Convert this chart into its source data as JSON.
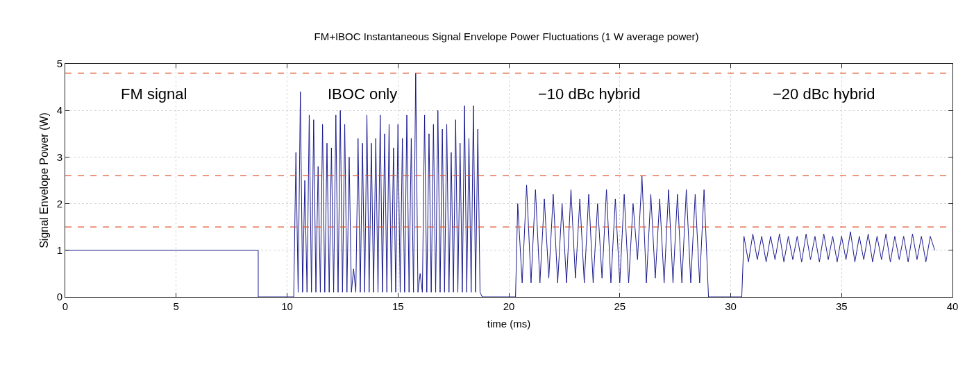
{
  "chart_data": {
    "type": "line",
    "title": "FM+IBOC Instantaneous Signal Envelope Power Fluctuations (1 W average power)",
    "xlabel": "time (ms)",
    "ylabel": "Signal Envelope Power (W)",
    "xlim": [
      0,
      40
    ],
    "xticks": [
      0,
      5,
      10,
      15,
      20,
      25,
      30,
      35,
      40
    ],
    "ylim": [
      0,
      5
    ],
    "yticks": [
      0,
      1,
      2,
      3,
      4,
      5
    ],
    "grid": true,
    "marker": "none",
    "line_style": "solid",
    "series": [
      {
        "color": "#1a1a8f",
        "x": [
          0,
          8.7,
          8.7,
          10.3,
          10.4,
          10.5,
          10.6,
          10.7,
          10.8,
          10.9,
          11.0,
          11.1,
          11.2,
          11.3,
          11.4,
          11.5,
          11.6,
          11.7,
          11.8,
          11.9,
          12.0,
          12.1,
          12.2,
          12.3,
          12.4,
          12.5,
          12.6,
          12.7,
          12.8,
          12.9,
          13.0,
          13.1,
          13.2,
          13.3,
          13.4,
          13.5,
          13.6,
          13.7,
          13.8,
          13.9,
          14.0,
          14.1,
          14.2,
          14.3,
          14.4,
          14.5,
          14.6,
          14.7,
          14.8,
          14.9,
          15.0,
          15.1,
          15.2,
          15.3,
          15.4,
          15.5,
          15.6,
          15.7,
          15.8,
          15.9,
          16.0,
          16.1,
          16.2,
          16.3,
          16.4,
          16.5,
          16.6,
          16.7,
          16.8,
          16.9,
          17.0,
          17.1,
          17.2,
          17.3,
          17.4,
          17.5,
          17.6,
          17.7,
          17.8,
          17.9,
          18.0,
          18.1,
          18.2,
          18.3,
          18.4,
          18.5,
          18.6,
          18.7,
          18.8,
          20.3,
          20.4,
          20.6,
          20.8,
          21.0,
          21.2,
          21.4,
          21.6,
          21.8,
          22.0,
          22.2,
          22.4,
          22.6,
          22.8,
          23.0,
          23.2,
          23.4,
          23.6,
          23.8,
          24.0,
          24.2,
          24.4,
          24.6,
          24.8,
          25.0,
          25.2,
          25.4,
          25.6,
          25.8,
          26.0,
          26.2,
          26.4,
          26.6,
          26.8,
          27.0,
          27.2,
          27.4,
          27.6,
          27.8,
          28.0,
          28.2,
          28.4,
          28.6,
          28.8,
          29.0,
          30.5,
          30.6,
          30.8,
          31.0,
          31.2,
          31.4,
          31.6,
          31.8,
          32.0,
          32.2,
          32.4,
          32.6,
          32.8,
          33.0,
          33.2,
          33.4,
          33.6,
          33.8,
          34.0,
          34.2,
          34.4,
          34.6,
          34.8,
          35.0,
          35.2,
          35.4,
          35.6,
          35.8,
          36.0,
          36.2,
          36.4,
          36.6,
          36.8,
          37.0,
          37.2,
          37.4,
          37.6,
          37.8,
          38.0,
          38.2,
          38.4,
          38.6,
          38.8,
          39.0,
          39.2
        ],
        "values": [
          1,
          1,
          0,
          0,
          3.1,
          0.1,
          4.4,
          0.1,
          2.5,
          0.1,
          3.9,
          0.1,
          3.8,
          0.1,
          2.8,
          0.1,
          3.7,
          0.1,
          3.3,
          0.1,
          3.2,
          0.1,
          3.9,
          0.1,
          4.0,
          0.1,
          3.7,
          0.1,
          3.0,
          0.1,
          0.6,
          0.1,
          3.4,
          0.1,
          3.3,
          0.1,
          3.9,
          0.1,
          3.3,
          0.1,
          3.4,
          0.1,
          3.9,
          0.1,
          3.5,
          0.1,
          3.7,
          0.1,
          3.2,
          0.1,
          3.7,
          0.1,
          3.4,
          0.1,
          3.9,
          0.1,
          3.4,
          0.1,
          4.8,
          0.1,
          0.5,
          0.1,
          3.9,
          0.1,
          3.5,
          0.1,
          3.7,
          0.1,
          4.0,
          0.1,
          3.6,
          0.1,
          3.7,
          0.1,
          3.1,
          0.1,
          3.8,
          0.1,
          3.3,
          0.1,
          4.1,
          0.1,
          3.4,
          0.1,
          4.1,
          0.1,
          3.6,
          0.1,
          0,
          0,
          2.0,
          0.3,
          2.4,
          0.3,
          2.3,
          0.3,
          2.1,
          0.4,
          2.2,
          0.3,
          2.0,
          0.3,
          2.3,
          0.4,
          2.1,
          0.3,
          2.2,
          0.3,
          2.0,
          0.4,
          2.3,
          0.3,
          2.1,
          0.3,
          2.2,
          0.3,
          2.0,
          0.8,
          2.6,
          0.3,
          2.2,
          0.4,
          2.1,
          0.3,
          2.3,
          0.3,
          2.2,
          0.3,
          2.3,
          0.3,
          2.2,
          0.3,
          2.3,
          0,
          0,
          1.3,
          0.75,
          1.35,
          0.8,
          1.3,
          0.75,
          1.3,
          0.8,
          1.35,
          0.75,
          1.3,
          0.8,
          1.3,
          0.75,
          1.35,
          0.8,
          1.3,
          0.75,
          1.35,
          0.8,
          1.3,
          0.75,
          1.3,
          0.8,
          1.4,
          0.75,
          1.3,
          0.8,
          1.35,
          0.75,
          1.3,
          0.8,
          1.35,
          0.75,
          1.3,
          0.8,
          1.3,
          0.75,
          1.35,
          0.8,
          1.3,
          0.75,
          1.3,
          1.0
        ]
      }
    ],
    "ref_lines": [
      {
        "axis": "y",
        "value": 4.8,
        "color": "#e0552d",
        "line_style": "dashed"
      },
      {
        "axis": "y",
        "value": 2.6,
        "color": "#e0552d",
        "line_style": "dashed"
      },
      {
        "axis": "y",
        "value": 1.5,
        "color": "#e0552d",
        "line_style": "dashed"
      }
    ],
    "annotations": [
      "FM signal",
      "IBOC only",
      "−10 dBc hybrid",
      "−20 dBc hybrid"
    ]
  }
}
